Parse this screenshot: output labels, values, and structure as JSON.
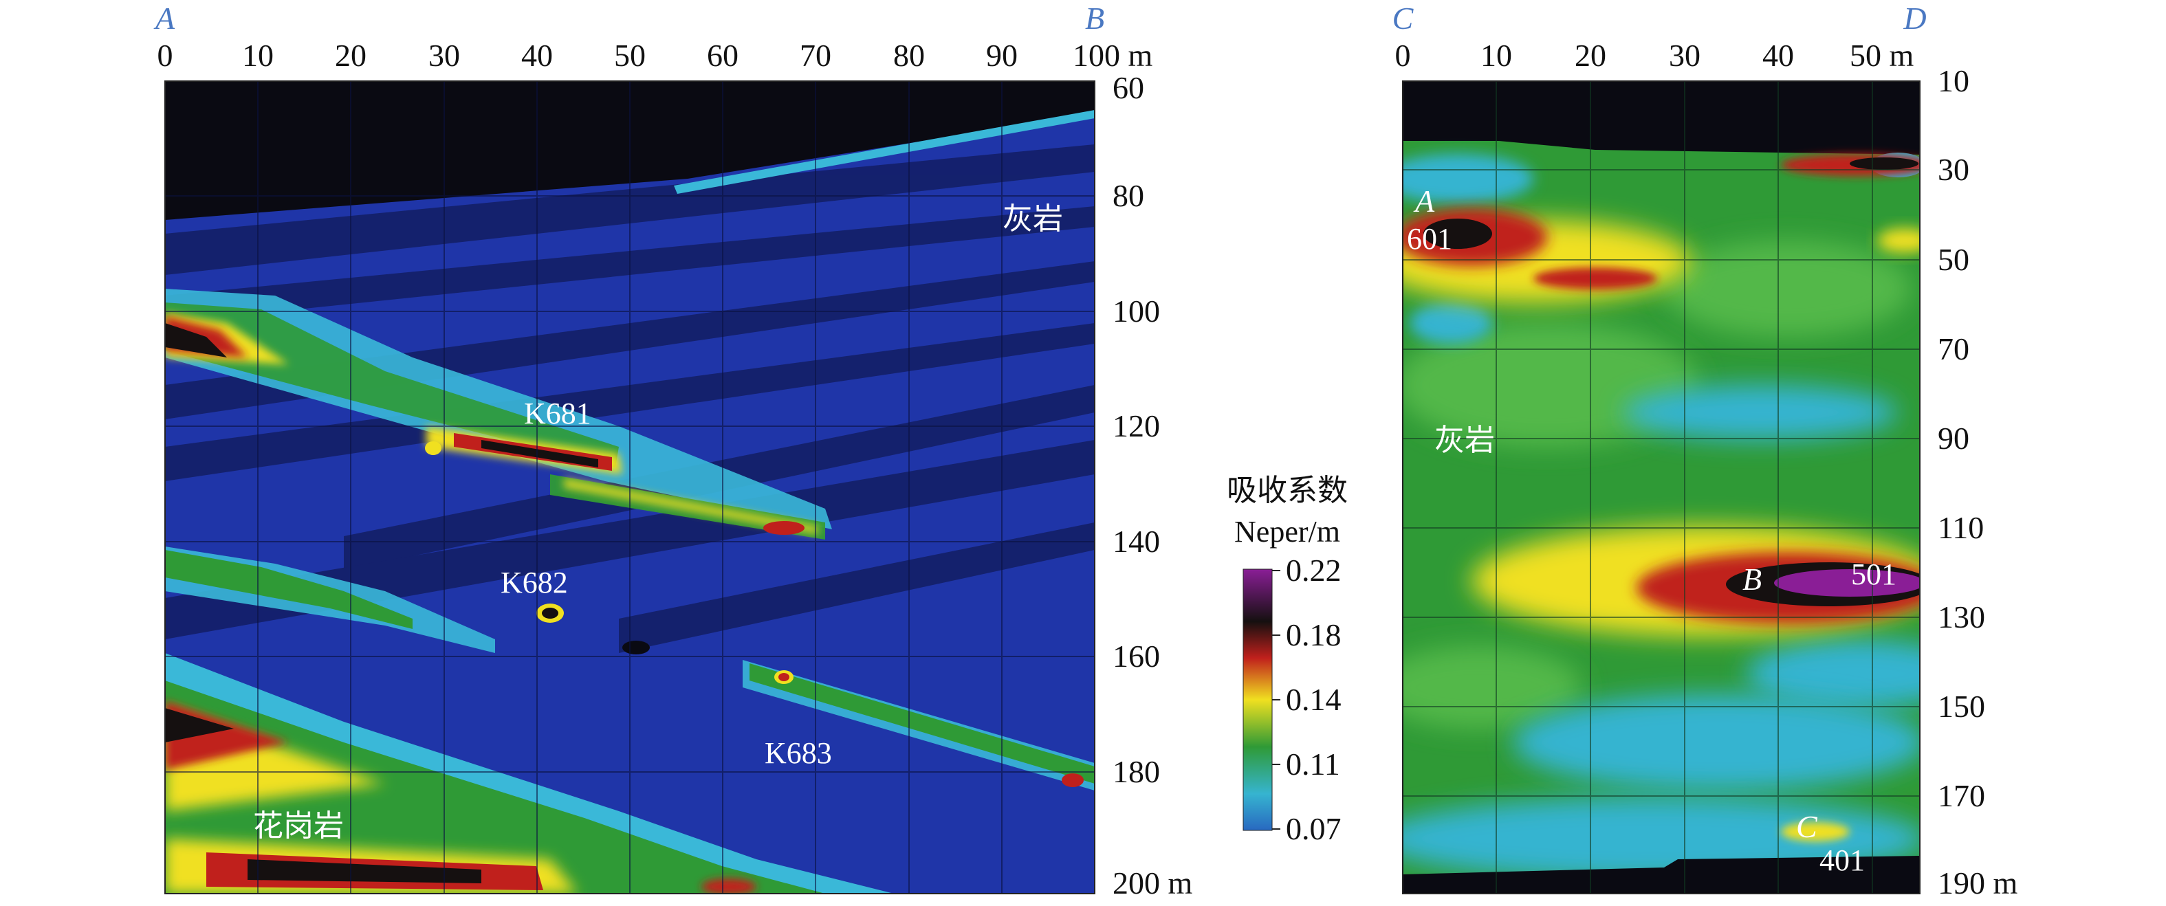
{
  "panel_left": {
    "corner_start": "A",
    "corner_end": "B",
    "x_ticks": [
      "0",
      "10",
      "20",
      "30",
      "40",
      "50",
      "60",
      "70",
      "80",
      "90",
      "100 m"
    ],
    "y_ticks": [
      "60",
      "80",
      "100",
      "120",
      "140",
      "160",
      "180",
      "200 m"
    ],
    "labels": {
      "limestone": "灰岩",
      "granite": "花岗岩",
      "k681": "K681",
      "k682": "K682",
      "k683": "K683"
    }
  },
  "panel_right": {
    "corner_start": "C",
    "corner_end": "D",
    "x_ticks": [
      "0",
      "10",
      "20",
      "30",
      "40",
      "50 m"
    ],
    "y_ticks": [
      "10",
      "30",
      "50",
      "70",
      "90",
      "110",
      "130",
      "150",
      "170",
      "190 m"
    ],
    "labels": {
      "limestone": "灰岩",
      "point_a": "A",
      "point_a_value": "601",
      "point_b": "B",
      "point_b_value": "501",
      "point_c": "C",
      "point_c_value": "401"
    }
  },
  "legend": {
    "title": "吸收系数",
    "unit": "Neper/m",
    "ticks": [
      "0.22",
      "0.18",
      "0.14",
      "0.11",
      "0.07"
    ],
    "colors": [
      "#8a1e96",
      "#151010",
      "#c0201c",
      "#f0e020",
      "#2f9a36",
      "#36b4d0",
      "#2868c0"
    ]
  }
}
